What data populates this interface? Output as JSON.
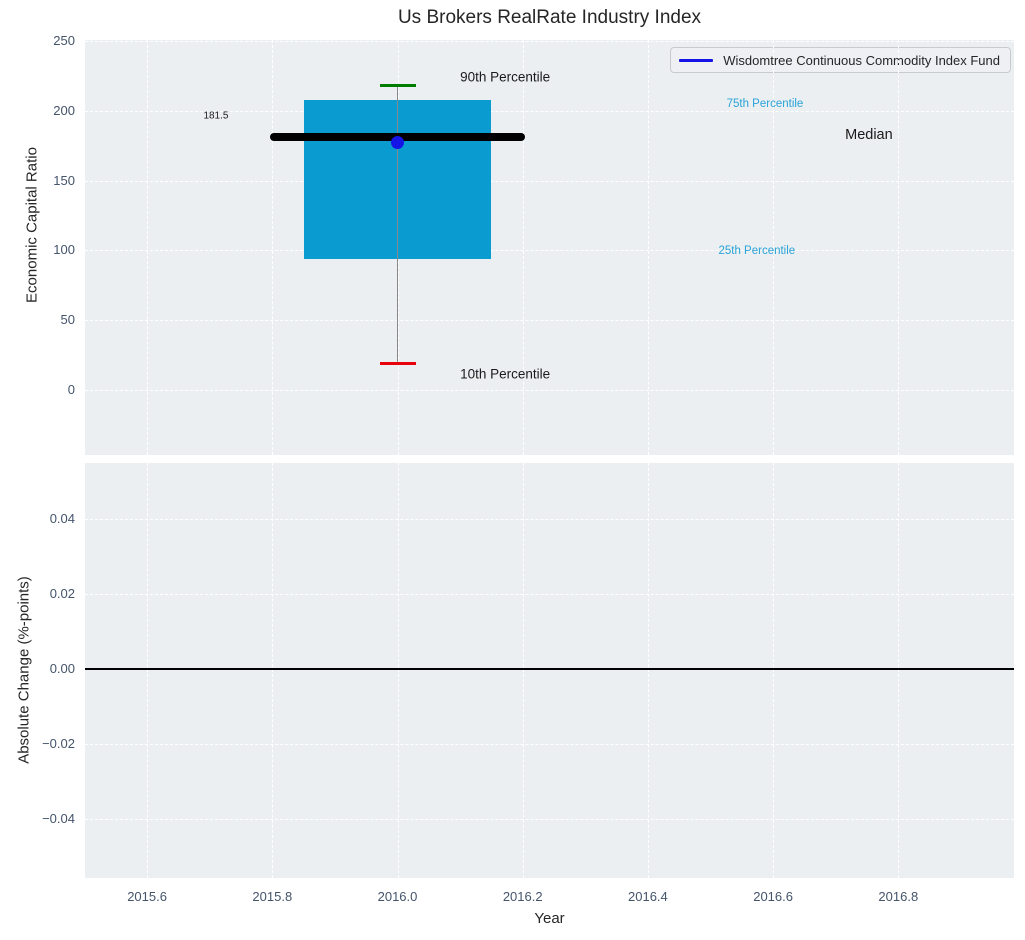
{
  "chart_data": [
    {
      "type": "boxplot",
      "title": "Us Brokers RealRate Industry Index",
      "xlabel": "Year",
      "ylabel": "Economic Capital Ratio",
      "legend": [
        "Wisdomtree Continuous Commodity Index Fund"
      ],
      "legend_position": "upper right",
      "grid": true,
      "xlim": [
        2015.5008,
        2016.9848
      ],
      "ylim": [
        -46.5,
        250.6
      ],
      "xticks": [
        {
          "v": 2015.6,
          "label": "2015.6"
        },
        {
          "v": 2015.8,
          "label": "2015.8"
        },
        {
          "v": 2016.0,
          "label": "2016.0"
        },
        {
          "v": 2016.2,
          "label": "2016.2"
        },
        {
          "v": 2016.4,
          "label": "2016.4"
        },
        {
          "v": 2016.6,
          "label": "2016.6"
        },
        {
          "v": 2016.8,
          "label": "2016.8"
        }
      ],
      "yticks": [
        {
          "v": 0,
          "label": "0"
        },
        {
          "v": 50,
          "label": "50"
        },
        {
          "v": 100,
          "label": "100"
        },
        {
          "v": 150,
          "label": "150"
        },
        {
          "v": 200,
          "label": "200"
        },
        {
          "v": 250,
          "label": "250"
        }
      ],
      "series": [
        {
          "name": "Wisdomtree Continuous Commodity Index Fund",
          "x": 2016.0,
          "p10": 19,
          "p25": 94,
          "median": 181.5,
          "p75": 208,
          "p90": 218,
          "value": 177,
          "box_x_span": [
            2015.85,
            2016.15
          ],
          "median_x_span": [
            2015.797,
            2016.203
          ]
        }
      ],
      "annotations": [
        {
          "id": "p90-label",
          "text": "90th Percentile",
          "x": 2016.1,
          "y": 224.0,
          "anchor": "left",
          "color": "#1a1a1a",
          "size": 13.5
        },
        {
          "id": "p75-label",
          "text": "75th Percentile",
          "x": 2016.587,
          "y": 204.8,
          "anchor": "center",
          "color": "#29a3d8",
          "size": 11.5
        },
        {
          "id": "median-label",
          "text": "Median",
          "x": 2016.753,
          "y": 182.6,
          "anchor": "center",
          "color": "#1a1a1a",
          "size": 14.5
        },
        {
          "id": "p25-label",
          "text": "25th Percentile",
          "x": 2016.574,
          "y": 99.9,
          "anchor": "center",
          "color": "#29a3d8",
          "size": 11.5
        },
        {
          "id": "p10-label",
          "text": "10th Percentile",
          "x": 2016.1,
          "y": 11.8,
          "anchor": "left",
          "color": "#1a1a1a",
          "size": 13.5
        },
        {
          "id": "median-value",
          "text": "181.5",
          "x": 2015.71,
          "y": 196.2,
          "anchor": "center",
          "color": "#1a1a1a",
          "size": 10
        }
      ]
    },
    {
      "type": "line",
      "title": "",
      "xlabel": "Year",
      "ylabel": "Absolute Change (%-points)",
      "grid": true,
      "xlim": [
        2015.5008,
        2016.9848
      ],
      "ylim": [
        -0.0556,
        0.0548
      ],
      "yticks": [
        {
          "v": 0.04,
          "label": "0.04"
        },
        {
          "v": 0.02,
          "label": "0.02"
        },
        {
          "v": 0.0,
          "label": "0.00"
        },
        {
          "v": -0.02,
          "label": "−0.02"
        },
        {
          "v": -0.04,
          "label": "−0.04"
        }
      ],
      "series": [],
      "zero_line": 0
    }
  ],
  "colors": {
    "box_fill": "#0a9cd0",
    "median_line": "#000000",
    "whisker": "#888888",
    "cap_90": "#007d00",
    "cap_10": "#e8000b",
    "marker": "#1414e6",
    "legend_line": "#1414e6",
    "zero_line": "#000000",
    "plot_bg": "#eceff1",
    "grid": "#ffffff",
    "tick_label": "#44546b"
  }
}
